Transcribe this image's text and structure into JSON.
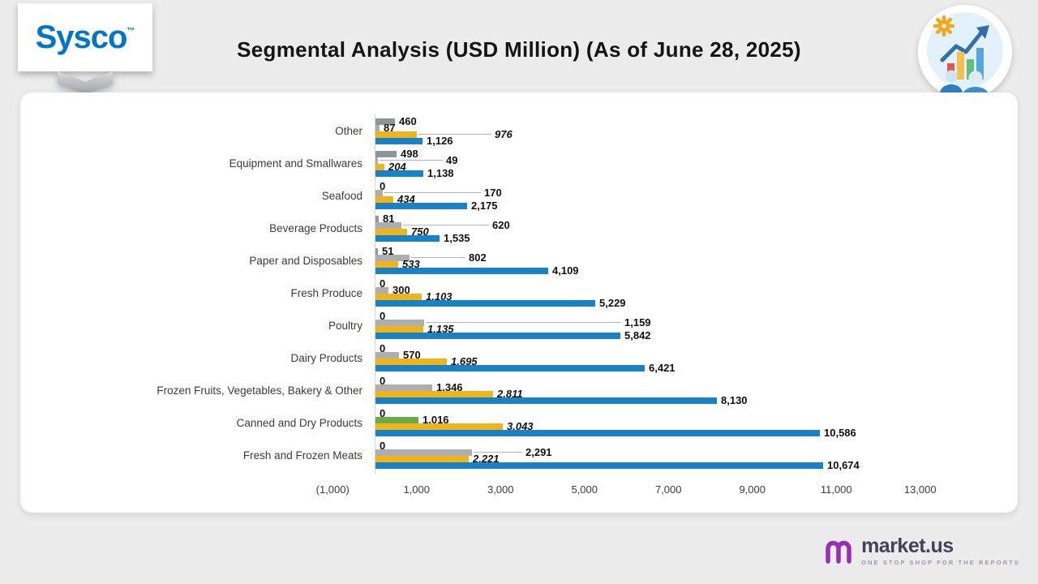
{
  "page": {
    "background": "#ececec"
  },
  "header": {
    "title": "Segmental Analysis (USD Million) (As of June 28, 2025)",
    "sysco_logo": {
      "text": "Sysco",
      "tm": "™",
      "color": "#0076c8"
    }
  },
  "brand": {
    "name": "market.us",
    "tagline": "ONE STOP SHOP FOR THE REPORTS",
    "icon_color": "#9c2bb5",
    "text_color": "#46405a"
  },
  "icons": {
    "badge": [
      "gear-icon",
      "growth-arrow-icon",
      "bar-chart-icon",
      "people-icon"
    ],
    "brand": "market-us-m-icon"
  },
  "chart_data": {
    "type": "bar",
    "orientation": "horizontal",
    "title": "Segmental Analysis (USD Million) (As of June 28, 2025)",
    "categories": [
      "Other",
      "Equipment and Smallwares",
      "Seafood",
      "Beverage Products",
      "Paper and Disposables",
      "Fresh Produce",
      "Poultry",
      "Dairy Products",
      "Frozen Fruits, Vegetables, Bakery & Other",
      "Canned and Dry Products",
      "Fresh and Frozen Meats"
    ],
    "series": [
      {
        "name": "series-1-gray",
        "color": "#8e969c",
        "values": [
          460,
          498,
          0,
          81,
          51,
          0,
          0,
          0,
          0,
          0,
          0
        ]
      },
      {
        "name": "series-2-silver",
        "color": "#acaeb0",
        "values": [
          87,
          49,
          170,
          620,
          802,
          300,
          1159,
          570,
          1346,
          1016,
          2291
        ],
        "point_colors": {
          "9": "#6caa45"
        },
        "label_x": {
          "1": 550,
          "2": 597,
          "3": 607,
          "4": 578,
          "6": 770,
          "10": 648
        }
      },
      {
        "name": "series-3-gold",
        "color": "#edb41e",
        "italic_labels": true,
        "values": [
          976,
          204,
          434,
          750,
          533,
          1103,
          1135,
          1695,
          2811,
          3043,
          2221
        ],
        "label_x": {
          "0": 610
        }
      },
      {
        "name": "series-4-blue",
        "color": "#1b81c5",
        "values": [
          1126,
          1138,
          2175,
          1535,
          4109,
          5229,
          5842,
          6421,
          8130,
          10586,
          10674
        ]
      }
    ],
    "x_ticks": {
      "values": [
        -1000,
        1000,
        3000,
        5000,
        7000,
        9000,
        11000,
        13000
      ],
      "labels": [
        "(1,000)",
        "1,000",
        "3,000",
        "5,000",
        "7,000",
        "9,000",
        "11,000",
        "13,000"
      ]
    },
    "xlim": [
      -1000,
      13000
    ],
    "legend": "none",
    "gridlines": false
  }
}
